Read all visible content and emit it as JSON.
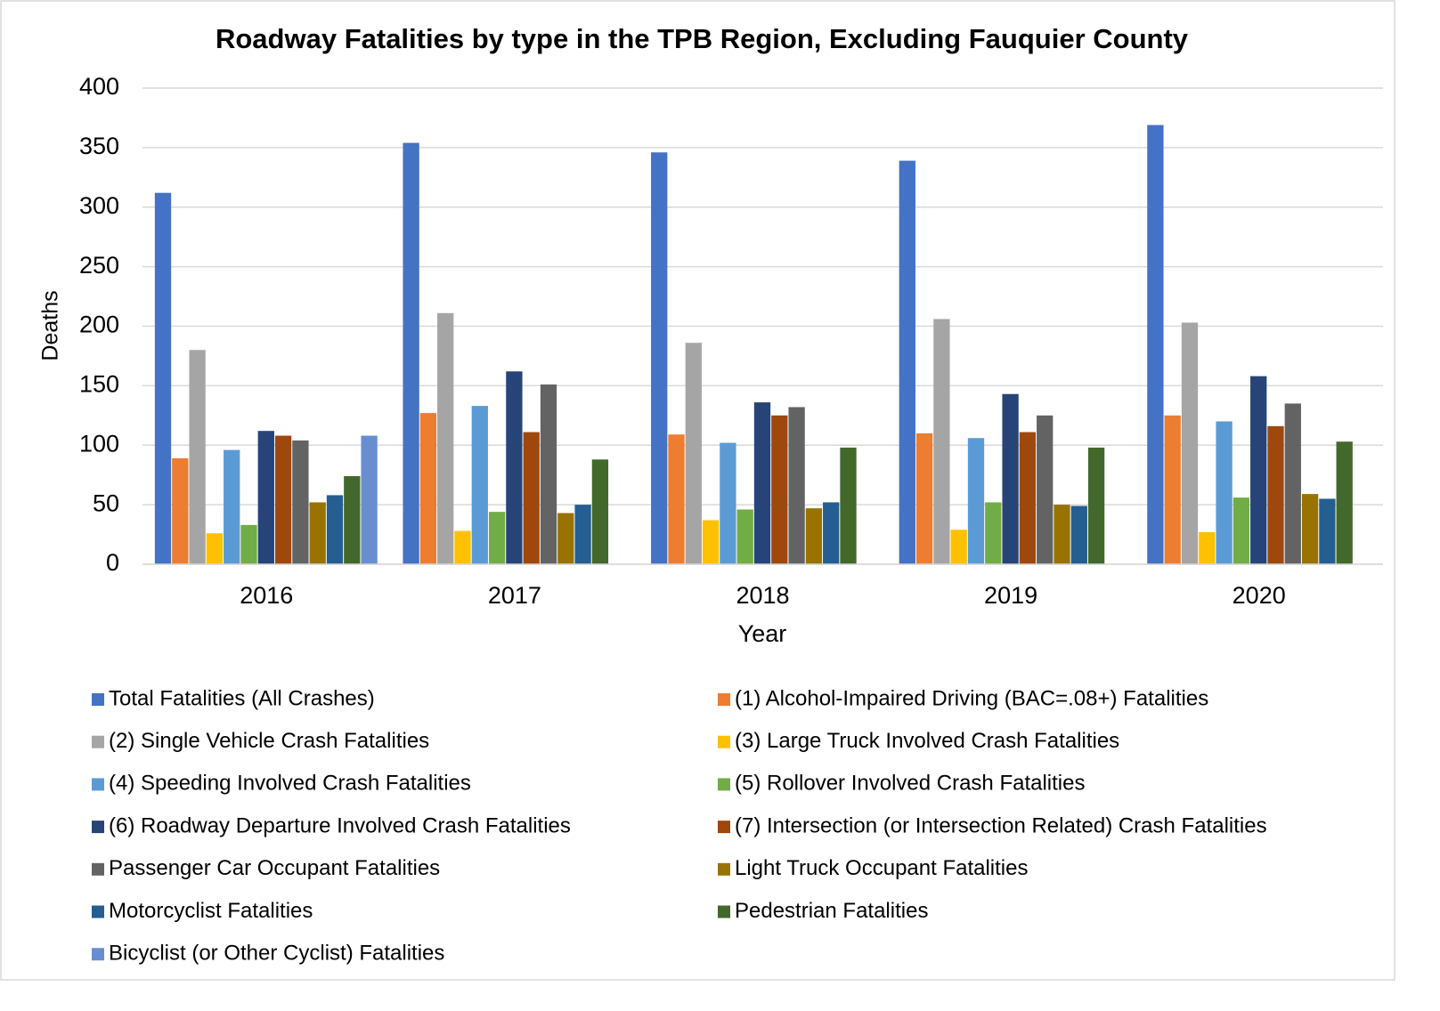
{
  "chart_data": {
    "type": "bar",
    "title": "Roadway Fatalities by type in the TPB Region, Excluding Fauquier County",
    "x_label": "Year",
    "y_label": "Deaths",
    "categories": [
      "2016",
      "2017",
      "2018",
      "2019",
      "2020"
    ],
    "ylim": [
      0,
      400
    ],
    "yticks": [
      0,
      50,
      100,
      150,
      200,
      250,
      300,
      350,
      400
    ],
    "grid": true,
    "series": [
      {
        "name": "Total Fatalities (All Crashes)",
        "color": "#4472c4",
        "values": [
          312,
          354,
          346,
          339,
          369
        ]
      },
      {
        "name": "(1) Alcohol-Impaired Driving (BAC=.08+) Fatalities",
        "color": "#ed7d31",
        "values": [
          89,
          127,
          109,
          110,
          125
        ]
      },
      {
        "name": "(2) Single Vehicle Crash Fatalities",
        "color": "#a5a5a5",
        "values": [
          180,
          211,
          186,
          206,
          203
        ]
      },
      {
        "name": "(3) Large Truck Involved Crash Fatalities",
        "color": "#ffc000",
        "values": [
          26,
          28,
          37,
          29,
          27
        ]
      },
      {
        "name": "(4) Speeding Involved Crash Fatalities",
        "color": "#5b9bd5",
        "values": [
          96,
          133,
          102,
          106,
          120
        ]
      },
      {
        "name": "(5) Rollover Involved Crash Fatalities",
        "color": "#70ad47",
        "values": [
          33,
          44,
          46,
          52,
          56
        ]
      },
      {
        "name": "(6) Roadway Departure Involved Crash Fatalities",
        "color": "#264478",
        "values": [
          112,
          162,
          136,
          143,
          158
        ]
      },
      {
        "name": "(7) Intersection (or Intersection Related) Crash Fatalities",
        "color": "#9e480e",
        "values": [
          108,
          111,
          125,
          111,
          116
        ]
      },
      {
        "name": "Passenger Car Occupant Fatalities",
        "color": "#636363",
        "values": [
          104,
          151,
          132,
          125,
          135
        ]
      },
      {
        "name": "Light Truck Occupant Fatalities",
        "color": "#997300",
        "values": [
          52,
          43,
          47,
          50,
          59
        ]
      },
      {
        "name": "Motorcyclist Fatalities",
        "color": "#255e91",
        "values": [
          58,
          50,
          52,
          49,
          55
        ]
      },
      {
        "name": "Pedestrian Fatalities",
        "color": "#43682b",
        "values": [
          74,
          88,
          98,
          98,
          103
        ]
      },
      {
        "name": "Bicyclist (or Other Cyclist) Fatalities",
        "color": "#698ed0",
        "values": [
          108,
          null,
          null,
          null,
          null
        ]
      }
    ]
  }
}
